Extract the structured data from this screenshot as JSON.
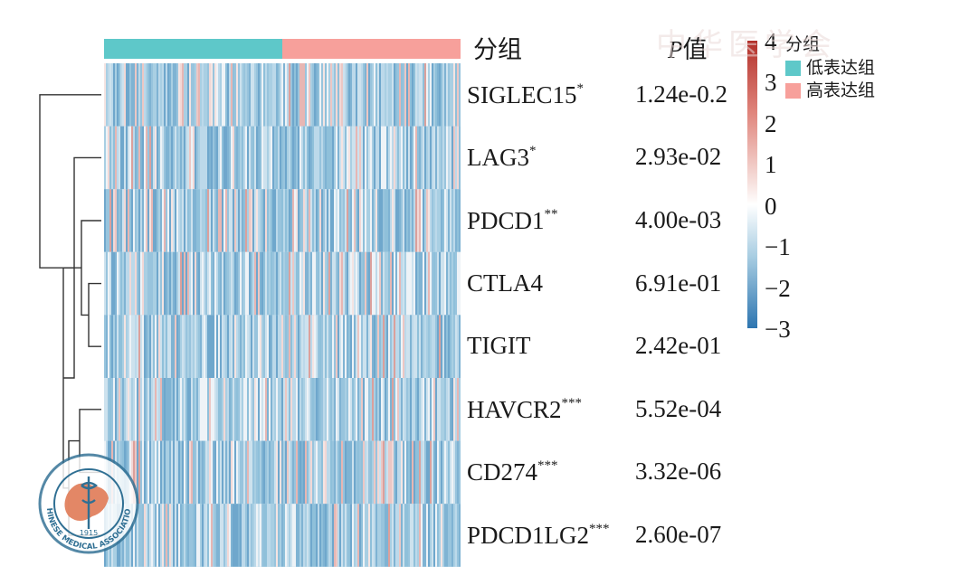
{
  "chart_data": {
    "type": "heatmap",
    "group_header": "分组",
    "pvalue_header_italic": "P",
    "pvalue_header_suffix": "值",
    "groups": [
      {
        "name": "低表达组",
        "color": "#5ec8c9"
      },
      {
        "name": "高表达组",
        "color": "#f7a09b"
      }
    ],
    "rows": [
      {
        "gene": "SIGLEC15",
        "stars": "*",
        "p": "1.24e-0.2"
      },
      {
        "gene": "LAG3",
        "stars": "*",
        "p": "2.93e-02"
      },
      {
        "gene": "PDCD1",
        "stars": "**",
        "p": "4.00e-03"
      },
      {
        "gene": "CTLA4",
        "stars": "",
        "p": "6.91e-01"
      },
      {
        "gene": "TIGIT",
        "stars": "",
        "p": "2.42e-01"
      },
      {
        "gene": "HAVCR2",
        "stars": "***",
        "p": "5.52e-04"
      },
      {
        "gene": "CD274",
        "stars": "***",
        "p": "3.32e-06"
      },
      {
        "gene": "PDCD1LG2",
        "stars": "***",
        "p": "2.60e-07"
      }
    ],
    "colorbar": {
      "min": -3,
      "max": 4,
      "ticks": [
        "4",
        "3",
        "2",
        "1",
        "0",
        "−1",
        "−2",
        "−3"
      ],
      "low_color": "#2d75b0",
      "mid_color": "#ffffff",
      "high_color": "#b2302a"
    },
    "legend_title": "分组",
    "dendrogram": "row clustering tree on left"
  },
  "watermark": {
    "text": "中华医学会",
    "english": "CHINESE MEDICAL ASSOCIATION",
    "year": "1915"
  }
}
